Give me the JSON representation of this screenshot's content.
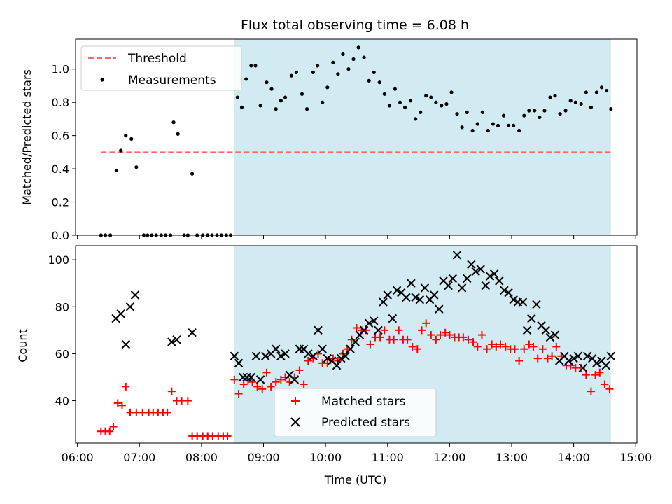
{
  "title": "Flux total observing time = 6.08 h",
  "colors": {
    "shade": "#add8e6",
    "threshold": "#ff6666",
    "measurements": "#000000",
    "matched": "#ff0000",
    "predicted": "#000000"
  },
  "chart_data": [
    {
      "type": "scatter",
      "ylabel": "Matched/Predicted stars",
      "ylim": [
        0,
        1.18
      ],
      "yticks": [
        "0.0",
        "0.2",
        "0.4",
        "0.6",
        "0.8",
        "1.0"
      ],
      "xlim_hours": [
        5.97,
        15.02
      ],
      "shaded_span_hours": [
        8.53,
        14.6
      ],
      "legend": {
        "placement": "upper-left",
        "threshold": "Threshold",
        "measurements": "Measurements"
      },
      "threshold": {
        "value": 0.5,
        "x_range_hours": [
          6.38,
          14.6
        ]
      },
      "measurements": {
        "x_hours": [
          6.38,
          6.45,
          6.53,
          6.63,
          6.7,
          6.78,
          6.87,
          6.95,
          7.07,
          7.13,
          7.2,
          7.27,
          7.35,
          7.42,
          7.5,
          7.55,
          7.62,
          7.72,
          7.78,
          7.85,
          7.93,
          8.02,
          8.1,
          8.17,
          8.25,
          8.32,
          8.4,
          8.47,
          8.58,
          8.65,
          8.72,
          8.8,
          8.87,
          8.95,
          9.05,
          9.13,
          9.2,
          9.28,
          9.35,
          9.45,
          9.53,
          9.62,
          9.7,
          9.8,
          9.87,
          9.95,
          10.03,
          10.12,
          10.2,
          10.28,
          10.37,
          10.45,
          10.53,
          10.62,
          10.7,
          10.78,
          10.87,
          10.95,
          11.03,
          11.12,
          11.2,
          11.28,
          11.37,
          11.45,
          11.53,
          11.62,
          11.7,
          11.78,
          11.87,
          11.95,
          12.03,
          12.12,
          12.2,
          12.28,
          12.37,
          12.45,
          12.53,
          12.62,
          12.7,
          12.78,
          12.87,
          12.95,
          13.03,
          13.12,
          13.2,
          13.28,
          13.37,
          13.45,
          13.53,
          13.62,
          13.7,
          13.78,
          13.87,
          13.95,
          14.03,
          14.12,
          14.2,
          14.28,
          14.37,
          14.45,
          14.53,
          14.6
        ],
        "y": [
          0,
          0,
          0,
          0.39,
          0.51,
          0.6,
          0.58,
          0.41,
          0,
          0,
          0,
          0,
          0,
          0,
          0,
          0.68,
          0.61,
          0,
          0,
          0.37,
          0,
          0,
          0,
          0,
          0,
          0,
          0,
          0,
          0.83,
          0.77,
          0.94,
          1.02,
          1.02,
          0.78,
          0.92,
          0.88,
          0.76,
          0.81,
          0.83,
          0.96,
          0.98,
          0.85,
          0.76,
          0.98,
          1.02,
          0.8,
          0.89,
          1.04,
          0.97,
          1.09,
          1.0,
          1.06,
          1.13,
          1.07,
          0.93,
          0.98,
          0.92,
          0.85,
          0.78,
          0.88,
          0.8,
          0.77,
          0.81,
          0.7,
          0.74,
          0.84,
          0.83,
          0.8,
          0.78,
          0.79,
          0.86,
          0.73,
          0.65,
          0.74,
          0.63,
          0.67,
          0.74,
          0.63,
          0.67,
          0.66,
          0.72,
          0.66,
          0.66,
          0.63,
          0.72,
          0.75,
          0.75,
          0.71,
          0.75,
          0.83,
          0.84,
          0.73,
          0.75,
          0.81,
          0.8,
          0.79,
          0.86,
          0.77,
          0.86,
          0.89,
          0.87,
          0.76
        ]
      }
    },
    {
      "type": "scatter",
      "ylabel": "Count",
      "xlabel": "Time (UTC)",
      "ylim": [
        22,
        106
      ],
      "yticks": [
        "40",
        "60",
        "80",
        "100"
      ],
      "xlim_hours": [
        5.97,
        15.02
      ],
      "xtick_labels": [
        "06:00",
        "07:00",
        "08:00",
        "09:00",
        "10:00",
        "11:00",
        "12:00",
        "13:00",
        "14:00",
        "15:00"
      ],
      "shaded_span_hours": [
        8.53,
        14.6
      ],
      "legend": {
        "placement": "lower-center",
        "matched": "Matched stars",
        "predicted": "Predicted stars"
      },
      "matched": {
        "x_hours": [
          6.38,
          6.45,
          6.52,
          6.58,
          6.65,
          6.72,
          6.78,
          6.85,
          6.95,
          7.05,
          7.15,
          7.22,
          7.3,
          7.38,
          7.45,
          7.52,
          7.6,
          7.68,
          7.78,
          7.85,
          7.93,
          8.02,
          8.1,
          8.18,
          8.27,
          8.35,
          8.42,
          8.53,
          8.6,
          8.68,
          8.75,
          8.82,
          8.9,
          8.98,
          9.05,
          9.12,
          9.2,
          9.28,
          9.35,
          9.42,
          9.5,
          9.58,
          9.65,
          9.72,
          9.8,
          9.88,
          9.95,
          10.03,
          10.12,
          10.2,
          10.28,
          10.35,
          10.42,
          10.5,
          10.58,
          10.65,
          10.72,
          10.8,
          10.88,
          10.95,
          11.03,
          11.1,
          11.18,
          11.25,
          11.32,
          11.4,
          11.48,
          11.55,
          11.62,
          11.7,
          11.78,
          11.85,
          11.93,
          12.0,
          12.08,
          12.15,
          12.22,
          12.3,
          12.38,
          12.45,
          12.52,
          12.6,
          12.68,
          12.75,
          12.82,
          12.9,
          12.98,
          13.05,
          13.12,
          13.2,
          13.28,
          13.35,
          13.42,
          13.5,
          13.58,
          13.65,
          13.72,
          13.8,
          13.88,
          13.95,
          14.03,
          14.12,
          14.2,
          14.28,
          14.35,
          14.42,
          14.5,
          14.58
        ],
        "y": [
          27,
          27,
          27,
          29,
          39,
          38,
          46,
          35,
          35,
          35,
          35,
          35,
          35,
          35,
          35,
          44,
          40,
          40,
          40,
          25,
          25,
          25,
          25,
          25,
          25,
          25,
          25,
          49,
          43,
          47,
          49,
          48,
          46,
          45,
          52,
          46,
          48,
          49,
          50,
          48,
          50,
          53,
          47,
          57,
          58,
          60,
          56,
          56,
          58,
          57,
          60,
          62,
          66,
          71,
          70,
          70,
          64,
          67,
          67,
          70,
          66,
          66,
          70,
          66,
          66,
          63,
          62,
          70,
          73,
          68,
          66,
          68,
          69,
          68,
          67,
          67,
          67,
          66,
          65,
          63,
          68,
          62,
          64,
          63,
          64,
          63,
          62,
          62,
          57,
          62,
          64,
          63,
          58,
          62,
          58,
          59,
          63,
          59,
          55,
          55,
          54,
          54,
          51,
          44,
          51,
          52,
          47,
          45
        ]
      },
      "predicted": {
        "x_hours": [
          6.62,
          6.7,
          6.78,
          6.85,
          6.93,
          7.52,
          7.6,
          7.85,
          8.53,
          8.6,
          8.67,
          8.73,
          8.8,
          8.88,
          8.95,
          9.03,
          9.12,
          9.2,
          9.28,
          9.35,
          9.42,
          9.5,
          9.58,
          9.65,
          9.72,
          9.8,
          9.88,
          9.95,
          10.03,
          10.1,
          10.18,
          10.25,
          10.32,
          10.4,
          10.48,
          10.55,
          10.62,
          10.7,
          10.78,
          10.85,
          10.93,
          11.0,
          11.08,
          11.15,
          11.22,
          11.3,
          11.38,
          11.45,
          11.52,
          11.6,
          11.68,
          11.75,
          11.83,
          11.9,
          11.98,
          12.05,
          12.12,
          12.2,
          12.28,
          12.35,
          12.42,
          12.5,
          12.58,
          12.65,
          12.72,
          12.8,
          12.88,
          12.95,
          13.03,
          13.1,
          13.18,
          13.25,
          13.32,
          13.4,
          13.48,
          13.55,
          13.62,
          13.7,
          13.77,
          13.85,
          13.92,
          14.0,
          14.07,
          14.15,
          14.22,
          14.3,
          14.37,
          14.45,
          14.52,
          14.6
        ],
        "y": [
          75,
          77,
          64,
          80,
          85,
          65,
          66,
          69,
          59,
          56,
          50,
          50,
          50,
          59,
          49,
          59,
          60,
          62,
          59,
          60,
          51,
          49,
          62,
          62,
          60,
          59,
          70,
          62,
          58,
          57,
          55,
          58,
          59,
          62,
          65,
          68,
          70,
          73,
          74,
          70,
          82,
          85,
          75,
          87,
          86,
          84,
          90,
          84,
          83,
          88,
          83,
          85,
          79,
          91,
          89,
          92,
          102,
          88,
          92,
          98,
          95,
          96,
          89,
          93,
          94,
          91,
          87,
          86,
          83,
          82,
          82,
          70,
          75,
          81,
          72,
          70,
          67,
          68,
          57,
          59,
          57,
          58,
          59,
          54,
          59,
          58,
          56,
          57,
          55,
          59
        ]
      }
    }
  ]
}
